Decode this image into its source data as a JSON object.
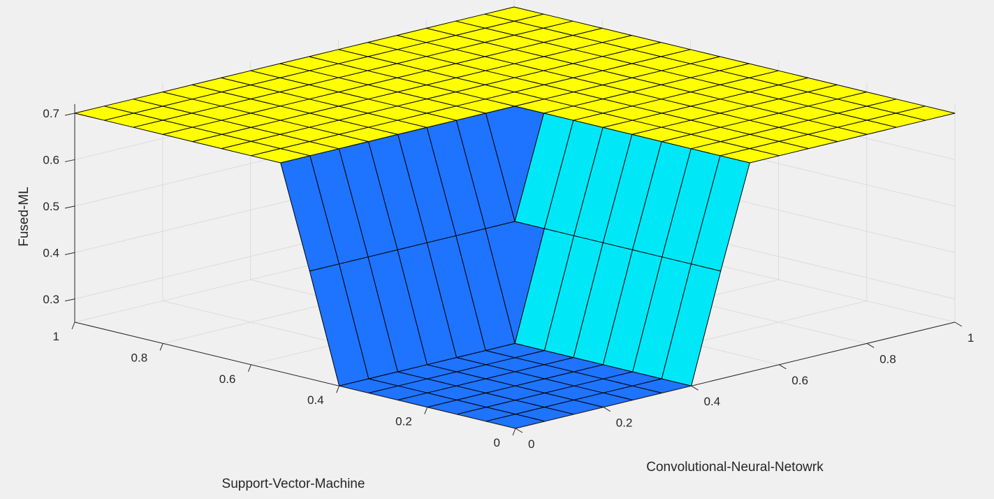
{
  "chart_data": {
    "type": "surface",
    "title": "",
    "xlabel": "Support-Vector-Machine",
    "ylabel": "Convolutional-Neural-Netowrk",
    "zlabel": "Fused-ML",
    "xlim": [
      0,
      1
    ],
    "ylim": [
      0,
      1
    ],
    "zlim": [
      0.25,
      0.72
    ],
    "grid": true,
    "x_ticks": [
      "0",
      "0.2",
      "0.4",
      "0.6",
      "0.8",
      "1"
    ],
    "y_ticks": [
      "0",
      "0.2",
      "0.4",
      "0.6",
      "0.8",
      "1"
    ],
    "z_ticks": [
      "0.3",
      "0.4",
      "0.5",
      "0.6",
      "0.7"
    ],
    "x_grid": [
      0,
      0.067,
      0.133,
      0.2,
      0.267,
      0.333,
      0.4,
      0.467,
      0.533,
      0.6,
      0.667,
      0.733,
      0.8,
      0.867,
      0.933,
      1
    ],
    "y_grid": [
      0,
      0.067,
      0.133,
      0.2,
      0.267,
      0.333,
      0.4,
      0.467,
      0.533,
      0.6,
      0.667,
      0.733,
      0.8,
      0.867,
      0.933,
      1
    ],
    "surface": {
      "high_value": 0.7,
      "low_value": 0.25,
      "low_region": {
        "x_max": 0.4,
        "y_max": 0.4
      },
      "wall_width": 0.13
    },
    "colors": {
      "high": "#ffff00",
      "low": "#1e73ff",
      "mid": "#00e8f8",
      "edge": "#000000",
      "grid": "#dcdcdc",
      "axis": "#262626"
    }
  }
}
